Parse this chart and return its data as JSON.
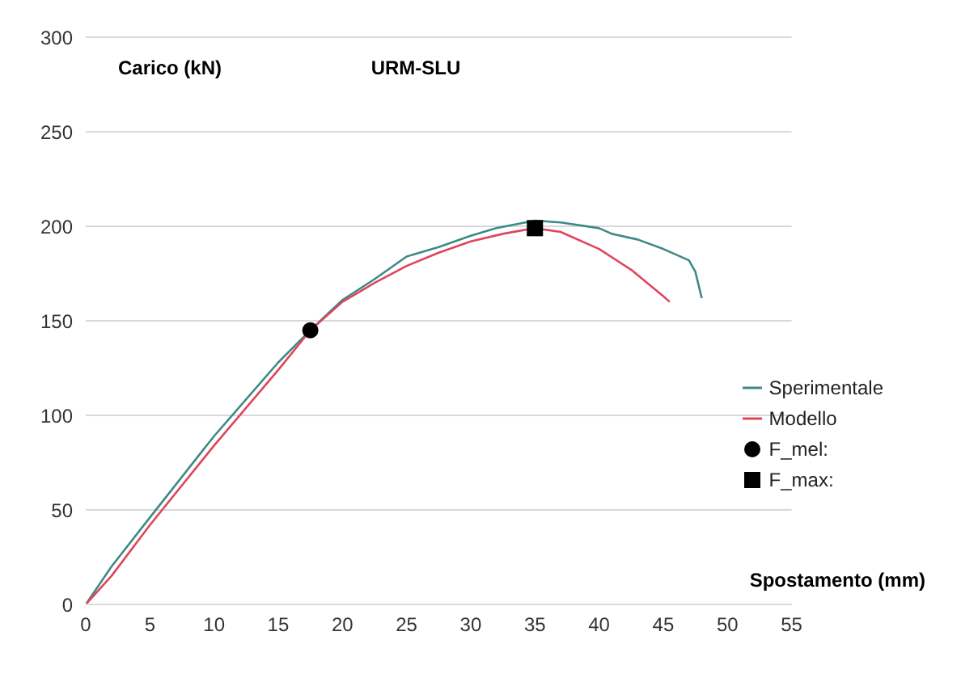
{
  "chart_data": {
    "type": "line",
    "title": "URM-SLU",
    "xlabel": "Spostamento (mm)",
    "ylabel": "Carico (kN)",
    "xlim": [
      0,
      55
    ],
    "xticks": [
      0,
      5,
      10,
      15,
      20,
      25,
      30,
      35,
      40,
      45,
      50,
      55
    ],
    "ylim": [
      0,
      300
    ],
    "yticks": [
      0,
      50,
      100,
      150,
      200,
      250,
      300
    ],
    "grid": "y",
    "legend": "right",
    "series": [
      {
        "name": "Sperimentale",
        "type": "line",
        "color": "#3d8a86",
        "x": [
          0,
          2,
          5,
          10,
          15,
          17.5,
          20,
          22.5,
          25,
          27.5,
          30,
          32,
          35,
          37,
          40,
          41,
          43,
          45,
          47,
          47.5,
          48
        ],
        "values": [
          0,
          20,
          46,
          89,
          128,
          145,
          161,
          172,
          184,
          189,
          195,
          199,
          203,
          202,
          199,
          196,
          193,
          188,
          182,
          176,
          162
        ]
      },
      {
        "name": "Modello",
        "type": "line",
        "color": "#e0455a",
        "x": [
          0,
          2,
          5,
          10,
          15,
          17.5,
          20,
          22.5,
          25,
          27.5,
          30,
          32.5,
          35,
          37,
          40,
          42.5,
          45,
          45.5
        ],
        "values": [
          0,
          15,
          42,
          84,
          124,
          145,
          160,
          170,
          179,
          186,
          192,
          196,
          199,
          197,
          188,
          177,
          163,
          160
        ]
      },
      {
        "name": "F_mel:",
        "type": "scatter",
        "marker": "circle",
        "color": "#000000",
        "x": [
          17.5
        ],
        "values": [
          145
        ]
      },
      {
        "name": "F_max:",
        "type": "scatter",
        "marker": "square",
        "color": "#000000",
        "x": [
          35
        ],
        "values": [
          199
        ]
      }
    ]
  }
}
